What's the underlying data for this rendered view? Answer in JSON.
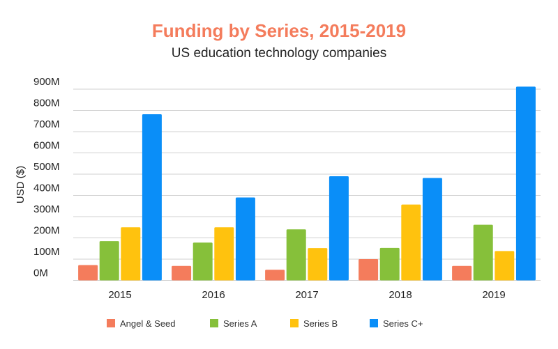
{
  "chart_data": {
    "type": "bar",
    "title": "Funding by Series, 2015-2019",
    "subtitle": "US education technology companies",
    "xlabel": "",
    "ylabel": "USD ($)",
    "ylim": [
      0,
      900
    ],
    "yticks": [
      0,
      100,
      200,
      300,
      400,
      500,
      600,
      700,
      800,
      900
    ],
    "ytick_labels": [
      "0M",
      "100M",
      "200M",
      "300M",
      "400M",
      "500M",
      "600M",
      "700M",
      "800M",
      "900M"
    ],
    "grid": true,
    "legend_position": "bottom",
    "categories": [
      "2015",
      "2016",
      "2017",
      "2018",
      "2019"
    ],
    "series": [
      {
        "name": "Angel & Seed",
        "color": "#f47c5c",
        "values": [
          72,
          68,
          50,
          100,
          68
        ]
      },
      {
        "name": "Series A",
        "color": "#86c03a",
        "values": [
          185,
          178,
          240,
          153,
          262
        ]
      },
      {
        "name": "Series B",
        "color": "#ffc20e",
        "values": [
          250,
          250,
          152,
          357,
          138
        ]
      },
      {
        "name": "Series C+",
        "color": "#0a8ef8",
        "values": [
          782,
          390,
          490,
          482,
          912
        ]
      }
    ]
  }
}
